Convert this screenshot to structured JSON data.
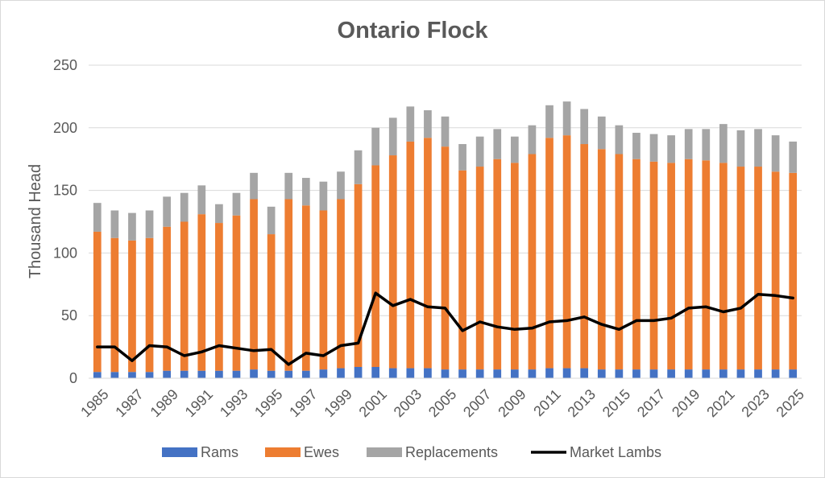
{
  "chart_data": {
    "type": "bar",
    "title": "Ontario Flock",
    "ylabel": "Thousand Head",
    "xlabel": "",
    "ylim": [
      0,
      250
    ],
    "y_ticks": [
      0,
      50,
      100,
      150,
      200,
      250
    ],
    "grid": "horizontal",
    "legend_position": "bottom",
    "categories": [
      "1985",
      "1986",
      "1987",
      "1988",
      "1989",
      "1990",
      "1991",
      "1992",
      "1993",
      "1994",
      "1995",
      "1996",
      "1997",
      "1998",
      "1999",
      "2000",
      "2001",
      "2002",
      "2003",
      "2004",
      "2005",
      "2006",
      "2007",
      "2008",
      "2009",
      "2010",
      "2011",
      "2012",
      "2013",
      "2014",
      "2015",
      "2016",
      "2017",
      "2018",
      "2019",
      "2020",
      "2021",
      "2022",
      "2023",
      "2024",
      "2025"
    ],
    "x_tick_labels": [
      "1985",
      "1987",
      "1989",
      "1991",
      "1993",
      "1995",
      "1997",
      "1999",
      "2001",
      "2003",
      "2005",
      "2007",
      "2009",
      "2011",
      "2013",
      "2015",
      "2017",
      "2019",
      "2021",
      "2023",
      "2025"
    ],
    "series": [
      {
        "name": "Rams",
        "kind": "stacked-bar",
        "color": "#4472C4",
        "values": [
          5,
          5,
          5,
          5,
          6,
          6,
          6,
          6,
          6,
          7,
          6,
          6,
          6,
          7,
          8,
          9,
          9,
          8,
          8,
          8,
          7,
          7,
          7,
          7,
          7,
          7,
          8,
          8,
          8,
          7,
          7,
          7,
          7,
          7,
          7,
          7,
          7,
          7,
          7,
          7,
          7
        ]
      },
      {
        "name": "Ewes",
        "kind": "stacked-bar",
        "color": "#ED7D31",
        "values": [
          112,
          107,
          105,
          107,
          115,
          119,
          125,
          118,
          124,
          136,
          109,
          137,
          132,
          127,
          135,
          146,
          161,
          170,
          181,
          184,
          178,
          159,
          162,
          168,
          165,
          172,
          184,
          186,
          179,
          176,
          172,
          168,
          166,
          165,
          168,
          167,
          165,
          162,
          162,
          158,
          157
        ]
      },
      {
        "name": "Replacements",
        "kind": "stacked-bar",
        "color": "#A5A5A5",
        "values": [
          23,
          22,
          22,
          22,
          24,
          23,
          23,
          15,
          18,
          21,
          22,
          21,
          22,
          23,
          22,
          27,
          30,
          30,
          28,
          22,
          24,
          21,
          24,
          24,
          21,
          23,
          26,
          27,
          28,
          26,
          23,
          21,
          22,
          22,
          24,
          25,
          31,
          29,
          30,
          29,
          25
        ]
      },
      {
        "name": "Market Lambs",
        "kind": "line",
        "color": "#000000",
        "values": [
          25,
          25,
          14,
          26,
          25,
          18,
          21,
          26,
          24,
          22,
          23,
          11,
          20,
          18,
          26,
          28,
          68,
          58,
          63,
          57,
          56,
          38,
          45,
          41,
          39,
          40,
          45,
          46,
          49,
          43,
          39,
          46,
          46,
          48,
          56,
          57,
          53,
          56,
          67,
          66,
          64
        ]
      }
    ]
  }
}
